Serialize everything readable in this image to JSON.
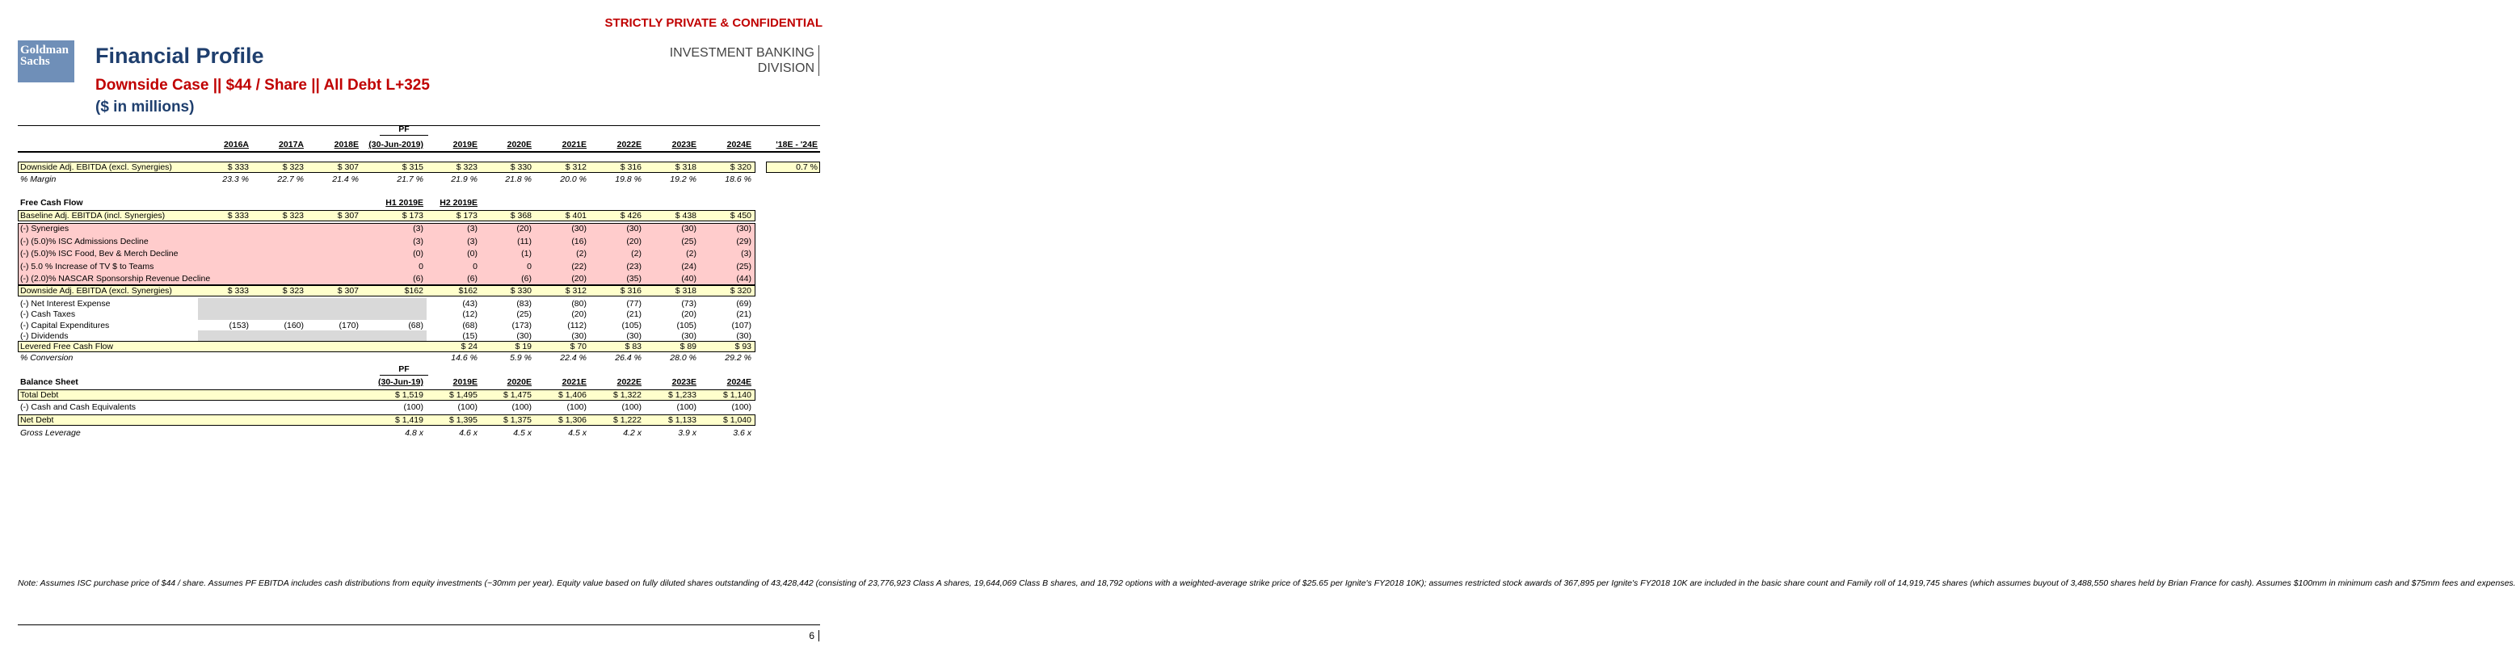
{
  "header": {
    "confidential": "STRICTLY PRIVATE & CONFIDENTIAL",
    "logo": [
      "Goldman",
      "Sachs"
    ],
    "title": "Financial Profile",
    "subtitle": "Downside Case || $44 / Share || All Debt L+325",
    "units": "($ in millions)",
    "division": [
      "INVESTMENT BANKING",
      "DIVISION"
    ]
  },
  "summary": {
    "pf_label": "PF",
    "columns": [
      "2016A",
      "2017A",
      "2018E",
      "(30-Jun-2019)",
      "2019E",
      "2020E",
      "2021E",
      "2022E",
      "2023E",
      "2024E",
      "'18E - '24E"
    ],
    "rows": [
      {
        "label": "Downside Adj. EBITDA (excl. Synergies)",
        "cells": [
          "$ 333",
          "$ 323",
          "$ 307",
          "$ 315",
          "$ 323",
          "$ 330",
          "$ 312",
          "$ 316",
          "$ 318",
          "$ 320",
          "0.7 %"
        ]
      },
      {
        "label": "% Margin",
        "cells": [
          "23.3 %",
          "22.7 %",
          "21.4 %",
          "21.7 %",
          "21.9 %",
          "21.8 %",
          "20.0 %",
          "19.8 %",
          "19.2 %",
          "18.6 %",
          null
        ]
      }
    ]
  },
  "fcf": {
    "title": "Free Cash Flow",
    "h1": "H1 2019E",
    "h2": "H2 2019E",
    "rows": [
      {
        "label": "Baseline Adj. EBITDA (incl. Synergies)",
        "cells": [
          "$ 333",
          "$ 323",
          "$ 307",
          "$ 173",
          "$ 173",
          "$ 368",
          "$ 401",
          "$ 426",
          "$ 438",
          "$ 450"
        ]
      },
      {
        "label": "(-) Synergies",
        "cells": [
          null,
          null,
          null,
          "(3)",
          "(3)",
          "(20)",
          "(30)",
          "(30)",
          "(30)",
          "(30)"
        ]
      },
      {
        "label": "(-) (5.0)% ISC Admissions Decline",
        "cells": [
          null,
          null,
          null,
          "(3)",
          "(3)",
          "(11)",
          "(16)",
          "(20)",
          "(25)",
          "(29)"
        ]
      },
      {
        "label": "(-) (5.0)% ISC Food, Bev & Merch Decline",
        "cells": [
          null,
          null,
          null,
          "(0)",
          "(0)",
          "(1)",
          "(2)",
          "(2)",
          "(2)",
          "(3)"
        ]
      },
      {
        "label": "(-) 5.0 % Increase of TV $ to Teams",
        "cells": [
          null,
          null,
          null,
          "0",
          "0",
          "0",
          "(22)",
          "(23)",
          "(24)",
          "(25)"
        ]
      },
      {
        "label": "(-) (2.0)% NASCAR Sponsorship Revenue Decline",
        "cells": [
          null,
          null,
          null,
          "(6)",
          "(6)",
          "(6)",
          "(20)",
          "(35)",
          "(40)",
          "(44)"
        ]
      },
      {
        "label": "Downside Adj. EBITDA (excl. Synergies)",
        "cells": [
          "$ 333",
          "$ 323",
          "$ 307",
          "$162",
          "$162",
          "$ 330",
          "$ 312",
          "$ 316",
          "$ 318",
          "$ 320"
        ]
      },
      {
        "label": "(-) Net Interest Expense",
        "cells": [
          null,
          null,
          null,
          null,
          "(43)",
          "(83)",
          "(80)",
          "(77)",
          "(73)",
          "(69)"
        ]
      },
      {
        "label": "(-) Cash Taxes",
        "cells": [
          null,
          null,
          null,
          null,
          "(12)",
          "(25)",
          "(20)",
          "(21)",
          "(20)",
          "(21)"
        ]
      },
      {
        "label": "(-) Capital Expenditures",
        "cells": [
          "(153)",
          "(160)",
          "(170)",
          "(68)",
          "(68)",
          "(173)",
          "(112)",
          "(105)",
          "(105)",
          "(107)"
        ]
      },
      {
        "label": "(-) Dividends",
        "cells": [
          null,
          null,
          null,
          null,
          "(15)",
          "(30)",
          "(30)",
          "(30)",
          "(30)",
          "(30)"
        ]
      },
      {
        "label": "Levered Free Cash Flow",
        "cells": [
          null,
          null,
          null,
          null,
          "$ 24",
          "$ 19",
          "$ 70",
          "$ 83",
          "$ 89",
          "$ 93"
        ]
      },
      {
        "label": "% Conversion",
        "cells": [
          null,
          null,
          null,
          null,
          "14.6 %",
          "5.9 %",
          "22.4 %",
          "26.4 %",
          "28.0 %",
          "29.2 %"
        ]
      }
    ]
  },
  "balance": {
    "title": "Balance Sheet",
    "pf_label": "PF",
    "columns": [
      "(30-Jun-19)",
      "2019E",
      "2020E",
      "2021E",
      "2022E",
      "2023E",
      "2024E"
    ],
    "rows": [
      {
        "label": "Total Debt",
        "cells": [
          "$ 1,519",
          "$ 1,495",
          "$ 1,475",
          "$ 1,406",
          "$ 1,322",
          "$ 1,233",
          "$ 1,140"
        ]
      },
      {
        "label": "(-) Cash and Cash Equivalents",
        "cells": [
          "(100)",
          "(100)",
          "(100)",
          "(100)",
          "(100)",
          "(100)",
          "(100)"
        ]
      },
      {
        "label": "Net Debt",
        "cells": [
          "$ 1,419",
          "$ 1,395",
          "$ 1,375",
          "$ 1,306",
          "$ 1,222",
          "$ 1,133",
          "$ 1,040"
        ]
      },
      {
        "label": "Gross Leverage",
        "cells": [
          "4.8 x",
          "4.6 x",
          "4.5 x",
          "4.5 x",
          "4.2 x",
          "3.9 x",
          "3.6 x"
        ]
      }
    ]
  },
  "note": "Note: Assumes ISC purchase price of $44 / share. Assumes PF EBITDA includes cash distributions from equity investments (~30mm per year). Equity value based on fully diluted shares outstanding of 43,428,442 (consisting of 23,776,923 Class A shares, 19,644,069 Class B shares, and 18,792 options with a weighted-average strike price of $25.65 per Ignite's FY2018 10K); assumes restricted stock awards of 367,895 per Ignite's FY2018 10K are included in the basic share count and Family roll of 14,919,745 shares (which assumes buyout of 3,488,550 shares held by Brian France for cash). Assumes $100mm in minimum cash and $75mm fees and expenses.",
  "page_number": "6"
}
